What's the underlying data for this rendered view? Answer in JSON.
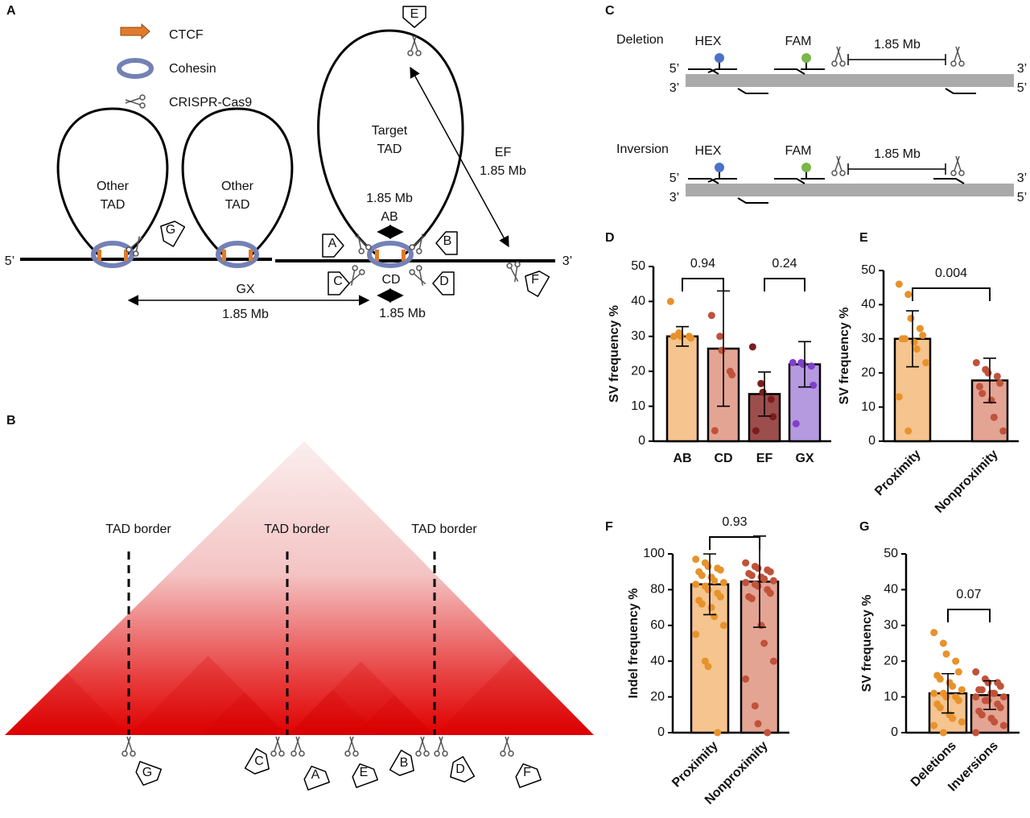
{
  "panel_a": {
    "letter": "A",
    "legend": [
      "CTCF",
      "Cohesin",
      "CRISPR-Cas9"
    ],
    "other_tad": [
      "Other",
      "TAD"
    ],
    "target_tad": [
      "Target",
      "TAD"
    ],
    "ab": [
      "1.85 Mb",
      "AB"
    ],
    "ef": [
      "EF",
      "1.85 Mb"
    ],
    "gx": [
      "GX",
      "1.85 Mb"
    ],
    "cd": [
      "CD",
      "1.85 Mb"
    ],
    "ends": [
      "5’",
      "3’"
    ],
    "tags": [
      "E",
      "A",
      "B",
      "C",
      "D",
      "F",
      "G"
    ]
  },
  "panel_b": {
    "letter": "B",
    "border": "TAD border",
    "tags": [
      "G",
      "C",
      "A",
      "E",
      "B",
      "D",
      "F"
    ]
  },
  "panel_c": {
    "letter": "C",
    "rows": [
      "Deletion",
      "Inversion"
    ],
    "probes": [
      "HEX",
      "FAM"
    ],
    "span": "1.85 Mb",
    "ends": [
      "5’",
      "3’"
    ]
  },
  "chart_data": [
    {
      "type": "bar",
      "panel": "D",
      "y_label": "SV frequency %",
      "categories": [
        "AB",
        "CD",
        "EF",
        "GX"
      ],
      "values": [
        30,
        26.5,
        13.5,
        22
      ],
      "errors": [
        2.8,
        16.5,
        6.3,
        6.5
      ],
      "colors": [
        "#f5c48f",
        "#e3a493",
        "#9c4e4c",
        "#b69ae0"
      ],
      "point_colors": [
        "#e8922b",
        "#c0523a",
        "#7a1d1d",
        "#8040c8"
      ],
      "points": [
        [
          40,
          31,
          30,
          30,
          29.5,
          30
        ],
        [
          36,
          30,
          26,
          20,
          19,
          3
        ],
        [
          27,
          16.5,
          14,
          12,
          7,
          3
        ],
        [
          22.5,
          22.5,
          22,
          21.5,
          16,
          5
        ]
      ],
      "ylim": [
        0,
        50
      ],
      "yticks": [
        0,
        10,
        20,
        30,
        40,
        50
      ],
      "comparisons": [
        {
          "between": [
            0,
            1
          ],
          "label": "0.94"
        },
        {
          "between": [
            2,
            3
          ],
          "label": "0.24"
        }
      ]
    },
    {
      "type": "bar",
      "panel": "E",
      "y_label": "SV frequency %",
      "categories": [
        "Proximity",
        "Nonproximity"
      ],
      "values": [
        30,
        17.8
      ],
      "errors": [
        8.2,
        6.5
      ],
      "colors": [
        "#f5c48f",
        "#e3a493"
      ],
      "point_colors": [
        "#e8922b",
        "#c0523a"
      ],
      "points": [
        [
          46,
          43,
          36,
          33,
          31,
          30,
          30,
          29,
          27,
          23,
          13,
          3
        ],
        [
          23,
          21,
          20,
          19,
          17,
          16,
          14,
          12,
          7,
          3
        ]
      ],
      "ylim": [
        0,
        50
      ],
      "yticks": [
        0,
        10,
        20,
        30,
        40,
        50
      ],
      "comparisons": [
        {
          "between": [
            0,
            1
          ],
          "label": "0.004"
        }
      ]
    },
    {
      "type": "bar",
      "panel": "F",
      "y_label": "Indel frequency %",
      "categories": [
        "Proximity",
        "Nonproximity"
      ],
      "values": [
        83,
        84.5
      ],
      "errors": [
        17,
        25.5
      ],
      "colors": [
        "#f5c48f",
        "#e3a493"
      ],
      "point_colors": [
        "#e8922b",
        "#c0523a"
      ],
      "points": [
        [
          97,
          95,
          93,
          92,
          91,
          90,
          88,
          87,
          85,
          84,
          83,
          82,
          80,
          78,
          76,
          74,
          72,
          70,
          65,
          60,
          55,
          40,
          37,
          0
        ],
        [
          95,
          93,
          92,
          91,
          90,
          89,
          88,
          87,
          86,
          85,
          84,
          83,
          82,
          80,
          78,
          76,
          75,
          60,
          50,
          40,
          30,
          15,
          5,
          0
        ]
      ],
      "ylim": [
        0,
        100
      ],
      "yticks": [
        0,
        20,
        40,
        60,
        80,
        100
      ],
      "comparisons": [
        {
          "between": [
            0,
            1
          ],
          "label": "0.93"
        }
      ]
    },
    {
      "type": "bar",
      "panel": "G",
      "y_label": "SV frequency  %",
      "categories": [
        "Deletions",
        "Inversions"
      ],
      "values": [
        11,
        10.5
      ],
      "errors": [
        5.5,
        4
      ],
      "colors": [
        "#f5c48f",
        "#e3a493"
      ],
      "point_colors": [
        "#e8922b",
        "#c0523a"
      ],
      "points": [
        [
          28,
          25,
          22,
          20,
          17,
          16,
          15,
          14,
          13,
          12,
          11,
          11,
          10,
          10,
          9,
          8,
          7,
          5,
          4,
          3,
          2,
          0
        ],
        [
          17,
          15,
          14,
          14,
          13,
          12,
          12,
          11,
          11,
          10,
          10,
          9,
          9,
          8,
          7,
          6,
          5,
          4,
          3,
          2,
          0
        ]
      ],
      "ylim": [
        0,
        50
      ],
      "yticks": [
        0,
        10,
        20,
        30,
        40,
        50
      ],
      "comparisons": [
        {
          "between": [
            0,
            1
          ],
          "label": "0.07"
        }
      ]
    }
  ]
}
